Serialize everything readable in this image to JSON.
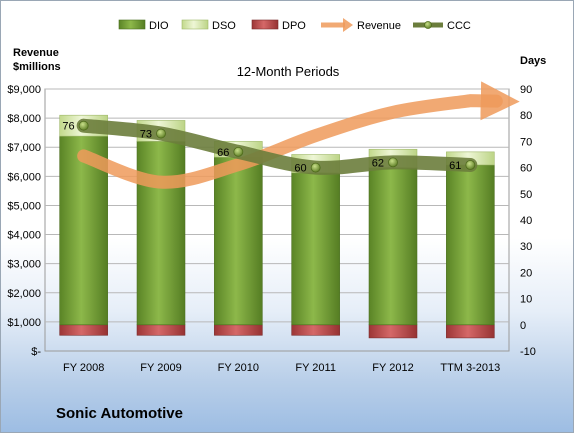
{
  "company": "Sonic Automotive",
  "chart_data": {
    "type": "bar",
    "title": "12-Month Periods",
    "categories": [
      "FY 2008",
      "FY 2009",
      "FY 2010",
      "FY 2011",
      "FY 2012",
      "TTM 3-2013"
    ],
    "y_left": {
      "label_line1": "Revenue",
      "label_line2": "$millions",
      "range": [
        0,
        9000
      ],
      "ticks": [
        0,
        1000,
        2000,
        3000,
        4000,
        5000,
        6000,
        7000,
        8000,
        9000
      ],
      "tick_labels": [
        "$-",
        "$1,000",
        "$2,000",
        "$3,000",
        "$4,000",
        "$5,000",
        "$6,000",
        "$7,000",
        "$8,000",
        "$9,000"
      ]
    },
    "y_right": {
      "label": "Days",
      "range": [
        -10,
        90
      ],
      "ticks": [
        -10,
        0,
        10,
        20,
        30,
        40,
        50,
        60,
        70,
        80,
        90
      ],
      "tick_labels": [
        "-10",
        "0",
        "10",
        "20",
        "30",
        "40",
        "50",
        "60",
        "70",
        "80",
        "90"
      ]
    },
    "series": [
      {
        "name": "DIO",
        "axis": "right",
        "kind": "stacked-bar",
        "color": "#6f9a32",
        "values": [
          72,
          70,
          64,
          58,
          60,
          61
        ]
      },
      {
        "name": "DSO",
        "axis": "right",
        "kind": "stacked-bar",
        "color": "#d3e5a8",
        "values": [
          8,
          8,
          6,
          7,
          7,
          5
        ]
      },
      {
        "name": "DPO",
        "axis": "right",
        "kind": "stacked-bar",
        "color": "#b84a4a",
        "values": [
          -4,
          -4,
          -4,
          -4,
          -5,
          -5
        ]
      },
      {
        "name": "Revenue",
        "axis": "left",
        "kind": "trend",
        "color": "#ee9a5a",
        "values": [
          6700,
          5800,
          6400,
          7400,
          8200,
          8600
        ]
      },
      {
        "name": "CCC",
        "axis": "right",
        "kind": "line",
        "color": "#6b7d3c",
        "values": [
          76,
          73,
          66,
          60,
          62,
          61
        ]
      }
    ],
    "ccc_labels": [
      "76",
      "73",
      "66",
      "60",
      "62",
      "61"
    ],
    "legend": [
      "DIO",
      "DSO",
      "DPO",
      "Revenue",
      "CCC"
    ],
    "legend_position": "top",
    "grid": true
  }
}
